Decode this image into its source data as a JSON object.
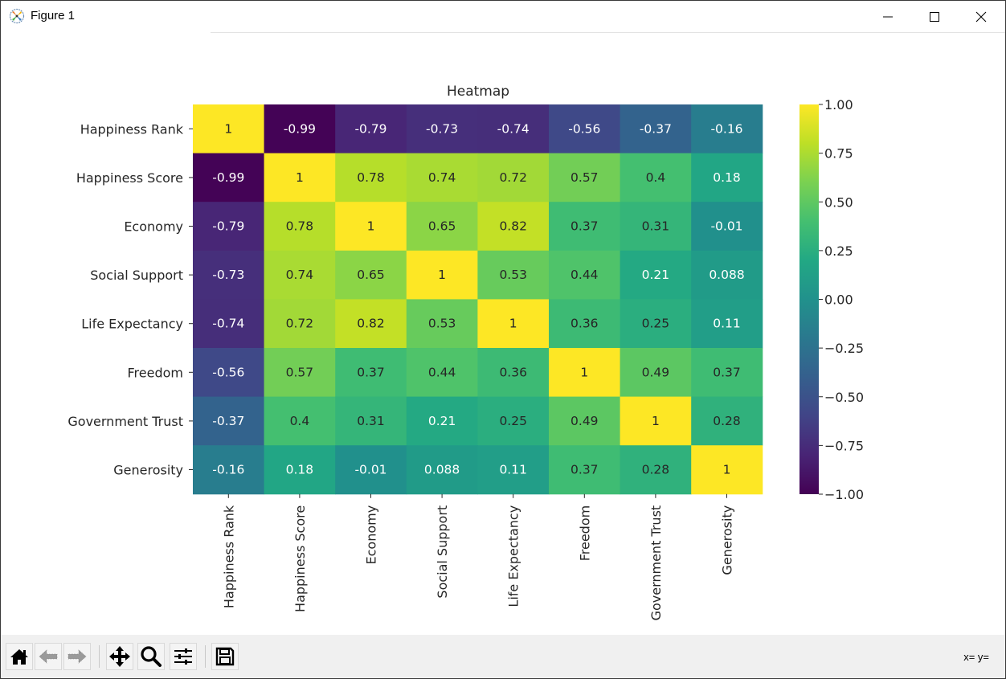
{
  "window": {
    "title": "Figure 1",
    "controls": [
      "minimize",
      "maximize",
      "close"
    ]
  },
  "toolbar": {
    "buttons": [
      {
        "name": "home",
        "icon": "home-icon"
      },
      {
        "name": "back",
        "icon": "arrow-left-icon"
      },
      {
        "name": "forward",
        "icon": "arrow-right-icon"
      },
      {
        "name": "pan",
        "icon": "move-icon"
      },
      {
        "name": "zoom",
        "icon": "magnifier-icon"
      },
      {
        "name": "configure-subplots",
        "icon": "sliders-icon"
      },
      {
        "name": "save",
        "icon": "floppy-disk-icon"
      }
    ],
    "coords_readout": "x= y="
  },
  "chart_data": {
    "type": "heatmap",
    "title": "Heatmap",
    "colormap": "viridis",
    "annotated": true,
    "xlabel": "",
    "ylabel": "",
    "labels": [
      "Happiness Rank",
      "Happiness Score",
      "Economy",
      "Social Support",
      "Life Expectancy",
      "Freedom",
      "Government Trust",
      "Generosity"
    ],
    "matrix": [
      [
        1,
        -0.99,
        -0.79,
        -0.73,
        -0.74,
        -0.56,
        -0.37,
        -0.16
      ],
      [
        -0.99,
        1,
        0.78,
        0.74,
        0.72,
        0.57,
        0.4,
        0.18
      ],
      [
        -0.79,
        0.78,
        1,
        0.65,
        0.82,
        0.37,
        0.31,
        -0.01
      ],
      [
        -0.73,
        0.74,
        0.65,
        1,
        0.53,
        0.44,
        0.21,
        0.088
      ],
      [
        -0.74,
        0.72,
        0.82,
        0.53,
        1,
        0.36,
        0.25,
        0.11
      ],
      [
        -0.56,
        0.57,
        0.37,
        0.44,
        0.36,
        1,
        0.49,
        0.37
      ],
      [
        -0.37,
        0.4,
        0.31,
        0.21,
        0.25,
        0.49,
        1,
        0.28
      ],
      [
        -0.16,
        0.18,
        -0.01,
        0.088,
        0.11,
        0.37,
        0.28,
        1
      ]
    ],
    "value_labels": [
      [
        "1",
        "-0.99",
        "-0.79",
        "-0.73",
        "-0.74",
        "-0.56",
        "-0.37",
        "-0.16"
      ],
      [
        "-0.99",
        "1",
        "0.78",
        "0.74",
        "0.72",
        "0.57",
        "0.4",
        "0.18"
      ],
      [
        "-0.79",
        "0.78",
        "1",
        "0.65",
        "0.82",
        "0.37",
        "0.31",
        "-0.01"
      ],
      [
        "-0.73",
        "0.74",
        "0.65",
        "1",
        "0.53",
        "0.44",
        "0.21",
        "0.088"
      ],
      [
        "-0.74",
        "0.72",
        "0.82",
        "0.53",
        "1",
        "0.36",
        "0.25",
        "0.11"
      ],
      [
        "-0.56",
        "0.57",
        "0.37",
        "0.44",
        "0.36",
        "1",
        "0.49",
        "0.37"
      ],
      [
        "-0.37",
        "0.4",
        "0.31",
        "0.21",
        "0.25",
        "0.49",
        "1",
        "0.28"
      ],
      [
        "-0.16",
        "0.18",
        "-0.01",
        "0.088",
        "0.11",
        "0.37",
        "0.28",
        "1"
      ]
    ],
    "colorbar": {
      "range": [
        -1.0,
        1.0
      ],
      "ticks": [
        1.0,
        0.75,
        0.5,
        0.25,
        0.0,
        -0.25,
        -0.5,
        -0.75,
        -1.0
      ],
      "tick_labels": [
        "1.00",
        "0.75",
        "0.50",
        "0.25",
        "0.00",
        "−0.25",
        "−0.50",
        "−0.75",
        "−1.00"
      ],
      "placement": "right"
    },
    "grid": false
  }
}
